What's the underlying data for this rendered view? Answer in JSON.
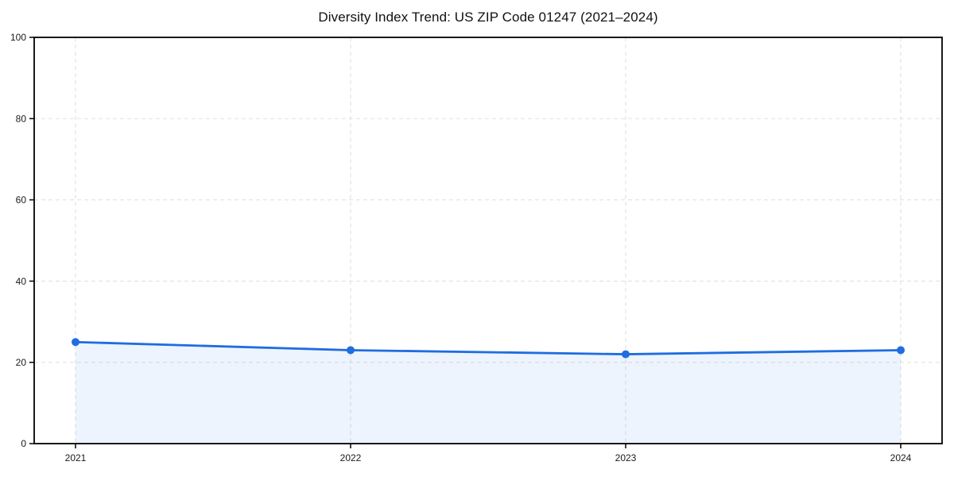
{
  "chart_data": {
    "type": "line",
    "title": "Diversity Index Trend: US ZIP Code 01247 (2021–2024)",
    "categories": [
      "2021",
      "2022",
      "2023",
      "2024"
    ],
    "series": [
      {
        "name": "Diversity Index",
        "values": [
          25,
          23,
          22,
          23
        ]
      }
    ],
    "xlabel": "",
    "ylabel": "",
    "ylim": [
      0,
      100
    ],
    "yticks": [
      0,
      20,
      40,
      60,
      80,
      100
    ],
    "grid": "dashed, horizontal and vertical",
    "legend": false,
    "area_fill": true,
    "colors": {
      "line": "#1f6de0",
      "marker": "#1f6de0",
      "area": "rgba(31,109,224,0.08)",
      "grid": "#e3e3e3",
      "axis": "#000000",
      "tick_label": "#1a1a1a",
      "title": "#111111",
      "background": "#ffffff"
    }
  }
}
